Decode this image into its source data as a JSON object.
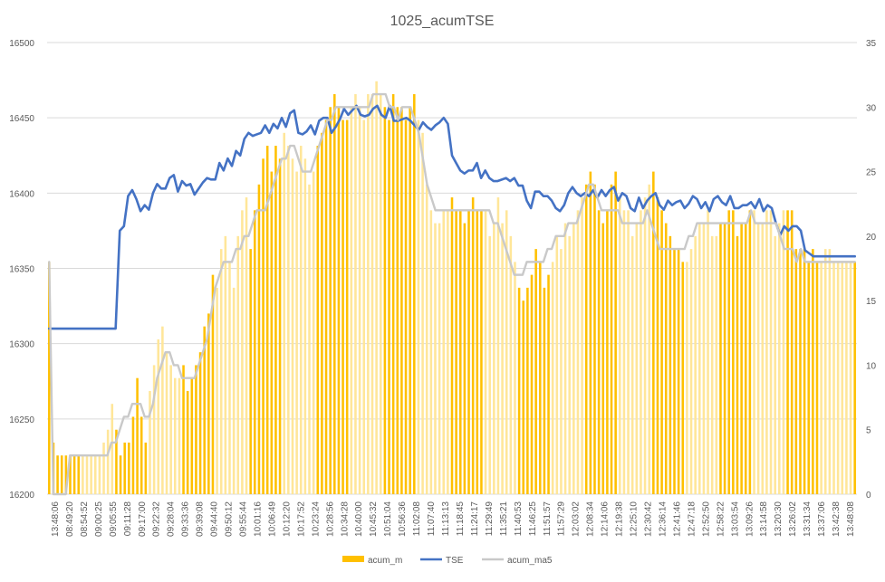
{
  "chart_data": {
    "type": "bar+line",
    "title": "1025_acumTSE",
    "xlabel": "",
    "ylabel": "",
    "y_left": {
      "min": 16200,
      "max": 16500,
      "step": 50,
      "ticks": [
        "16200",
        "16250",
        "16300",
        "16350",
        "16400",
        "16450",
        "16500"
      ]
    },
    "y_right": {
      "min": 0,
      "max": 35,
      "step": 5,
      "ticks": [
        "0",
        "5",
        "10",
        "15",
        "20",
        "25",
        "30",
        "35"
      ]
    },
    "grid": "horizontal",
    "legend_position": "bottom",
    "x_tick_labels": [
      "13:48:06",
      "08:49:20",
      "08:54:52",
      "09:00:25",
      "09:05:55",
      "09:11:28",
      "09:17:00",
      "09:22:32",
      "09:28:04",
      "09:33:36",
      "09:39:08",
      "09:44:40",
      "09:50:12",
      "09:55:44",
      "10:01:16",
      "10:06:49",
      "10:12:20",
      "10:17:52",
      "10:23:24",
      "10:28:56",
      "10:34:28",
      "10:40:00",
      "10:45:32",
      "10:51:04",
      "10:56:36",
      "11:02:08",
      "11:07:40",
      "11:13:13",
      "11:18:45",
      "11:24:17",
      "11:29:49",
      "11:35:21",
      "11:40:53",
      "11:46:25",
      "11:51:57",
      "11:57:29",
      "12:03:02",
      "12:08:34",
      "12:14:06",
      "12:19:38",
      "12:25:10",
      "12:30:42",
      "12:36:14",
      "12:41:46",
      "12:47:18",
      "12:52:50",
      "12:58:22",
      "13:03:54",
      "13:09:26",
      "13:14:58",
      "13:20:30",
      "13:26:02",
      "13:31:34",
      "13:37:06",
      "13:42:38",
      "13:48:08"
    ],
    "series": [
      {
        "name": "acum_m",
        "type": "bar",
        "axis": "right",
        "color": "#FFC000",
        "values": [
          18,
          4,
          3,
          3,
          3,
          3,
          3,
          3,
          3,
          3,
          3,
          3,
          3,
          4,
          5,
          7,
          5,
          3,
          4,
          4,
          6,
          9,
          6,
          4,
          8,
          10,
          12,
          13,
          11,
          10,
          9,
          9,
          10,
          8,
          9,
          10,
          11,
          13,
          14,
          17,
          16,
          19,
          20,
          18,
          16,
          20,
          22,
          23,
          19,
          22,
          24,
          26,
          27,
          25,
          27,
          26,
          28,
          27,
          26,
          25,
          27,
          26,
          24,
          25,
          27,
          28,
          29,
          30,
          31,
          30,
          29,
          29,
          30,
          31,
          30,
          29,
          31,
          31,
          32,
          31,
          30,
          29,
          31,
          30,
          30,
          29,
          30,
          31,
          29,
          28,
          24,
          22,
          21,
          21,
          22,
          22,
          23,
          22,
          22,
          21,
          22,
          23,
          22,
          22,
          22,
          20,
          21,
          23,
          21,
          22,
          20,
          18,
          16,
          15,
          16,
          17,
          19,
          18,
          16,
          17,
          18,
          20,
          19,
          21,
          20,
          21,
          22,
          23,
          24,
          25,
          24,
          22,
          21,
          22,
          24,
          25,
          23,
          22,
          22,
          20,
          21,
          22,
          23,
          24,
          25,
          23,
          22,
          21,
          20,
          19,
          19,
          18,
          18,
          19,
          20,
          21,
          21,
          22,
          20,
          20,
          21,
          21,
          22,
          22,
          20,
          21,
          21,
          22,
          22,
          21,
          21,
          22,
          22,
          20,
          21,
          22,
          22,
          22,
          19,
          19,
          19,
          18,
          19,
          18,
          18,
          19,
          19,
          18,
          18,
          18,
          18,
          18,
          18
        ]
      },
      {
        "name": "TSE",
        "type": "line",
        "axis": "left",
        "color": "#4472C4",
        "values": [
          16310,
          16310,
          16310,
          16310,
          16310,
          16310,
          16310,
          16310,
          16310,
          16310,
          16310,
          16310,
          16310,
          16310,
          16310,
          16310,
          16310,
          16375,
          16378,
          16398,
          16402,
          16396,
          16388,
          16392,
          16389,
          16400,
          16406,
          16403,
          16403,
          16410,
          16412,
          16401,
          16408,
          16405,
          16406,
          16399,
          16403,
          16407,
          16410,
          16409,
          16409,
          16420,
          16415,
          16423,
          16418,
          16428,
          16425,
          16436,
          16440,
          16438,
          16439,
          16440,
          16445,
          16440,
          16446,
          16443,
          16450,
          16444,
          16453,
          16455,
          16440,
          16439,
          16441,
          16445,
          16439,
          16448,
          16450,
          16450,
          16440,
          16444,
          16449,
          16456,
          16452,
          16455,
          16458,
          16452,
          16451,
          16452,
          16456,
          16458,
          16452,
          16450,
          16458,
          16448,
          16448,
          16449,
          16450,
          16448,
          16445,
          16442,
          16447,
          16444,
          16442,
          16445,
          16447,
          16450,
          16446,
          16425,
          16420,
          16415,
          16413,
          16415,
          16415,
          16420,
          16410,
          16415,
          16410,
          16408,
          16408,
          16409,
          16410,
          16408,
          16410,
          16405,
          16405,
          16395,
          16390,
          16401,
          16401,
          16398,
          16398,
          16395,
          16390,
          16388,
          16392,
          16400,
          16404,
          16400,
          16398,
          16400,
          16398,
          16402,
          16397,
          16402,
          16398,
          16402,
          16404,
          16395,
          16400,
          16398,
          16390,
          16388,
          16397,
          16390,
          16395,
          16398,
          16400,
          16392,
          16389,
          16395,
          16392,
          16394,
          16395,
          16390,
          16393,
          16398,
          16396,
          16390,
          16394,
          16388,
          16396,
          16398,
          16394,
          16392,
          16398,
          16390,
          16390,
          16392,
          16392,
          16394,
          16390,
          16396,
          16388,
          16392,
          16390,
          16380,
          16372,
          16378,
          16375,
          16378,
          16378,
          16375,
          16362,
          16360,
          16358,
          16358,
          16358,
          16358,
          16358,
          16358,
          16358,
          16358,
          16358,
          16358,
          16358
        ]
      },
      {
        "name": "acum_ma5",
        "type": "line",
        "axis": "right",
        "color": "#C9C9C9",
        "values": [
          18,
          0,
          0,
          0,
          0,
          3,
          3,
          3,
          3,
          3,
          3,
          3,
          3,
          3,
          3,
          4,
          4,
          5,
          6,
          6,
          7,
          7,
          7,
          6,
          6,
          7,
          9,
          10,
          11,
          11,
          10,
          10,
          9,
          9,
          9,
          9,
          10,
          11,
          12,
          14,
          16,
          17,
          18,
          18,
          18,
          19,
          19,
          20,
          20,
          21,
          22,
          22,
          22,
          23,
          24,
          25,
          26,
          26,
          27,
          27,
          26,
          25,
          25,
          25,
          26,
          27,
          28,
          29,
          29,
          30,
          30,
          30,
          30,
          30,
          30,
          30,
          30,
          30,
          31,
          31,
          31,
          31,
          30,
          30,
          29,
          30,
          30,
          30,
          29,
          28,
          26,
          24,
          23,
          22,
          22,
          22,
          22,
          22,
          22,
          22,
          22,
          22,
          22,
          22,
          22,
          22,
          22,
          21,
          21,
          20,
          19,
          18,
          17,
          17,
          17,
          18,
          18,
          18,
          18,
          18,
          19,
          19,
          20,
          20,
          20,
          21,
          21,
          21,
          22,
          23,
          24,
          24,
          23,
          22,
          22,
          22,
          22,
          22,
          21,
          21,
          21,
          21,
          21,
          21,
          22,
          21,
          20,
          19,
          19,
          19,
          19,
          19,
          19,
          19,
          20,
          20,
          21,
          21,
          21,
          21,
          21,
          21,
          21,
          21,
          21,
          21,
          21,
          21,
          21,
          22,
          21,
          21,
          21,
          21,
          21,
          21,
          20,
          19,
          19,
          19,
          18,
          19,
          18,
          18,
          18,
          18,
          18,
          18,
          18,
          18,
          18,
          18,
          18,
          18,
          18
        ]
      }
    ]
  }
}
